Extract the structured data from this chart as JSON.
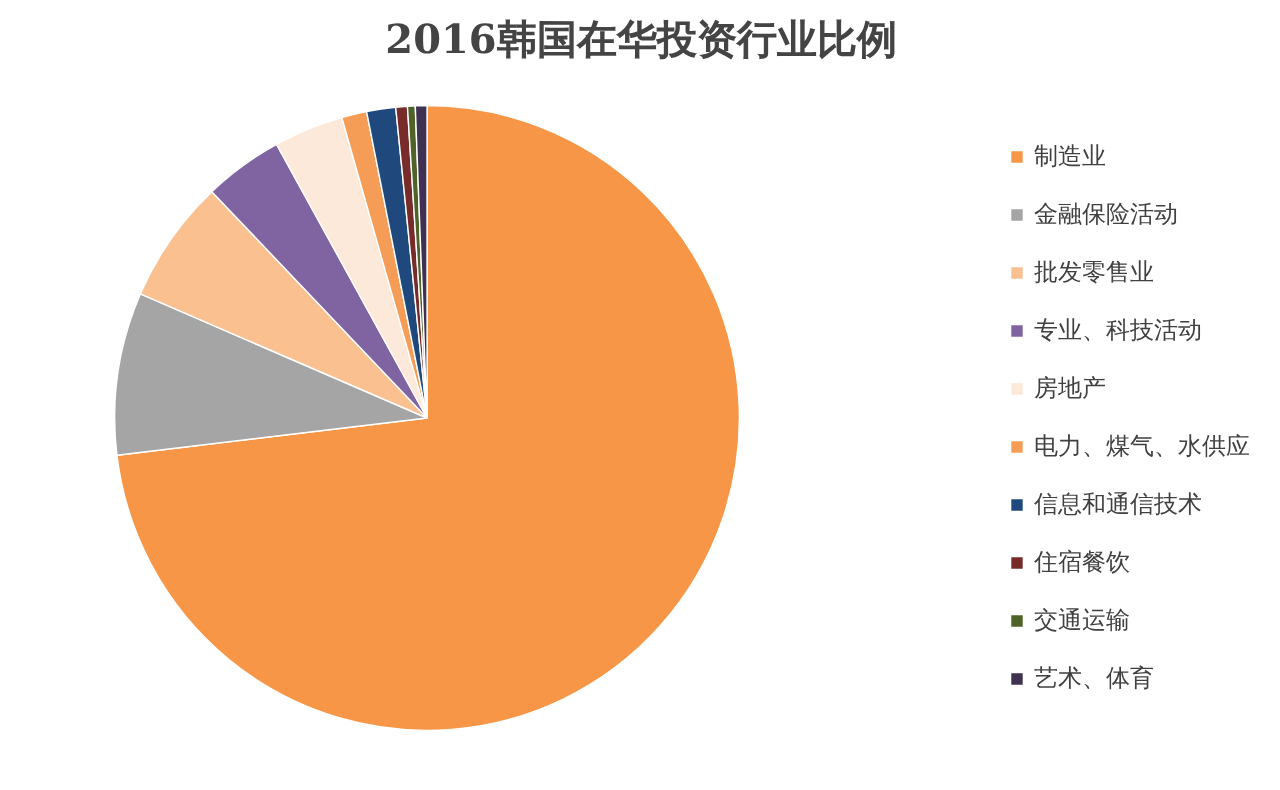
{
  "chart_data": {
    "type": "pie",
    "title": "2016韩国在华投资行业比例",
    "categories": [
      "制造业",
      "金融保险活动",
      "批发零售业",
      "专业、科技活动",
      "房地产",
      "电力、煤气、水供应",
      "信息和通信技术",
      "住宿餐饮",
      "交通运输",
      "艺术、体育"
    ],
    "values": [
      73.1,
      8.4,
      6.4,
      4.1,
      3.6,
      1.3,
      1.5,
      0.6,
      0.4,
      0.6
    ],
    "colors": [
      "#f79646",
      "#a5a5a5",
      "#fac090",
      "#8064a2",
      "#fde9d9",
      "#f59d56",
      "#1f497d",
      "#772c2a",
      "#4f6228",
      "#3f3151"
    ],
    "legend": "right"
  }
}
